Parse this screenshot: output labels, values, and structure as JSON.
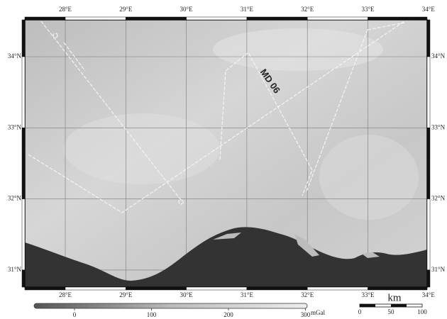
{
  "map": {
    "lon_labels": [
      "28°E",
      "29°E",
      "30°E",
      "31°E",
      "32°E",
      "33°E",
      "34°E"
    ],
    "lat_labels": [
      "34°N",
      "33°N",
      "32°N",
      "31°N"
    ],
    "track_label": "MD 06",
    "colorbar": {
      "ticks": [
        "0",
        "100",
        "200",
        "300"
      ],
      "unit": "mGal"
    },
    "scale_bar": {
      "unit": "km",
      "ticks": [
        "0",
        "50",
        "100"
      ]
    }
  }
}
